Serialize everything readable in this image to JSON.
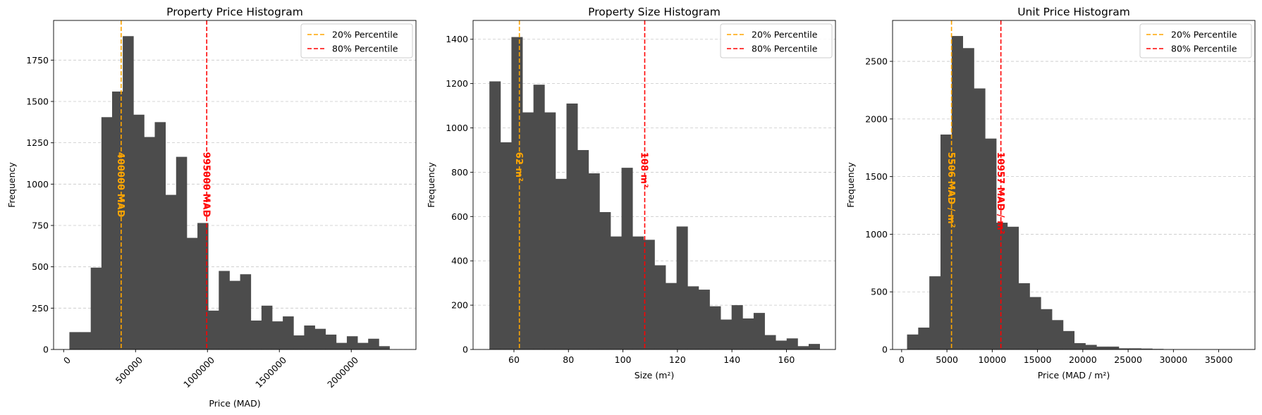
{
  "chart_data": [
    {
      "type": "bar",
      "title": "Property Price Histogram",
      "xlabel": "Price (MAD)",
      "ylabel": "Frequency",
      "xlim": [
        -70000,
        2450000
      ],
      "ylim": [
        0,
        1990
      ],
      "xticks": [
        0,
        500000,
        1000000,
        1500000,
        2000000
      ],
      "yticks": [
        0,
        250,
        500,
        750,
        1000,
        1250,
        1500,
        1750
      ],
      "xtick_rotation": 45,
      "bin_start": 40000,
      "bin_width": 74200,
      "values": [
        105,
        105,
        495,
        1405,
        1560,
        1895,
        1420,
        1285,
        1375,
        935,
        1165,
        675,
        765,
        235,
        475,
        415,
        455,
        175,
        265,
        170,
        200,
        85,
        145,
        125,
        90,
        40,
        80,
        40,
        65,
        20
      ],
      "grid": "y-dashed",
      "legend_position": "top-right",
      "lines": [
        {
          "legend": "20% Percentile",
          "x": 400000,
          "label": "400000 MAD",
          "color": "#FFA500"
        },
        {
          "legend": "80% Percentile",
          "x": 995000,
          "label": "995000 MAD",
          "color": "#FF0000"
        }
      ]
    },
    {
      "type": "bar",
      "title": "Property Size Histogram",
      "xlabel": "Size (m²)",
      "ylabel": "Frequency",
      "xlim": [
        45,
        178
      ],
      "ylim": [
        0,
        1485
      ],
      "xticks": [
        60,
        80,
        100,
        120,
        140,
        160
      ],
      "yticks": [
        0,
        200,
        400,
        600,
        800,
        1000,
        1200,
        1400
      ],
      "xtick_rotation": 0,
      "bin_start": 51,
      "bin_width": 4.04,
      "values": [
        1210,
        935,
        1410,
        1070,
        1195,
        1070,
        770,
        1110,
        900,
        795,
        620,
        510,
        820,
        510,
        495,
        380,
        300,
        555,
        285,
        270,
        195,
        135,
        200,
        140,
        165,
        65,
        40,
        50,
        15,
        25
      ],
      "grid": "y-dashed",
      "legend_position": "top-right",
      "lines": [
        {
          "legend": "20% Percentile",
          "x": 62,
          "label": "62 m²",
          "color": "#FFA500"
        },
        {
          "legend": "80% Percentile",
          "x": 108,
          "label": "108 m²",
          "color": "#FF0000"
        }
      ]
    },
    {
      "type": "bar",
      "title": "Unit Price Histogram",
      "xlabel": "Price (MAD / m²)",
      "ylabel": "Frequency",
      "xlim": [
        -1000,
        39000
      ],
      "ylim": [
        0,
        2855
      ],
      "xticks": [
        0,
        5000,
        10000,
        15000,
        20000,
        25000,
        30000,
        35000
      ],
      "yticks": [
        0,
        500,
        1000,
        1500,
        2000,
        2500
      ],
      "xtick_rotation": 0,
      "bin_start": 600,
      "bin_width": 1230,
      "values": [
        130,
        190,
        635,
        1865,
        2720,
        2615,
        2265,
        1830,
        1100,
        1065,
        575,
        455,
        350,
        255,
        160,
        55,
        40,
        25,
        25,
        10,
        10,
        8,
        5,
        3,
        2,
        2,
        1,
        1,
        1,
        1
      ],
      "grid": "y-dashed",
      "legend_position": "top-right",
      "lines": [
        {
          "legend": "20% Percentile",
          "x": 5506,
          "label": "5506 MAD / m²",
          "color": "#FFA500"
        },
        {
          "legend": "80% Percentile",
          "x": 10957,
          "label": "10957 MAD / m²",
          "color": "#FF0000"
        }
      ]
    }
  ],
  "bar_color": "#4C4C4C"
}
